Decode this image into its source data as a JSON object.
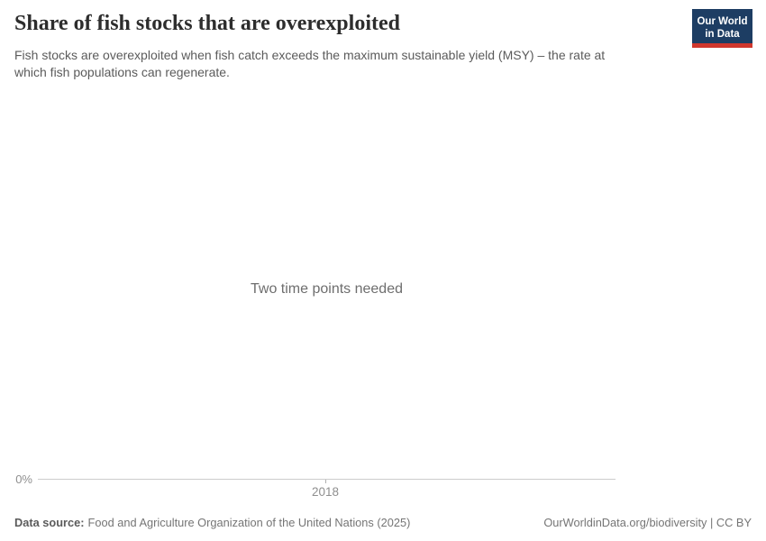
{
  "header": {
    "title": "Share of fish stocks that are overexploited",
    "subtitle_lines": [
      "Fish stocks are overexploited when fish catch exceeds the maximum sustainable yield (MSY) – the rate at",
      "which fish populations can regenerate."
    ],
    "logo": {
      "line1": "Our World",
      "line2": "in Data"
    }
  },
  "chart": {
    "empty_message": "Two time points needed",
    "y_tick_label": "0%",
    "x_tick_label": "2018"
  },
  "chart_data": {
    "type": "line",
    "title": "Share of fish stocks that are overexploited",
    "subtitle": "Fish stocks are overexploited when fish catch exceeds the maximum sustainable yield (MSY) – the rate at which fish populations can regenerate.",
    "series": [],
    "empty_state_message": "Two time points needed",
    "x_ticks": [
      "2018"
    ],
    "y_ticks": [
      "0%"
    ],
    "grid": false,
    "legend": false
  },
  "footer": {
    "source_label": "Data source:",
    "source_text": "Food and Agriculture Organization of the United Nations (2025)",
    "attribution": "OurWorldinData.org/biodiversity | CC BY"
  },
  "colors": {
    "logo_navy": "#1d3d63",
    "logo_red": "#d0372d",
    "title": "#2d2d2d",
    "subtitle": "#5b5b5b",
    "empty_message": "#6e6e6e",
    "axis_label": "#8f8f8f",
    "axis_line": "#cccccc",
    "footer_text": "#757575"
  }
}
